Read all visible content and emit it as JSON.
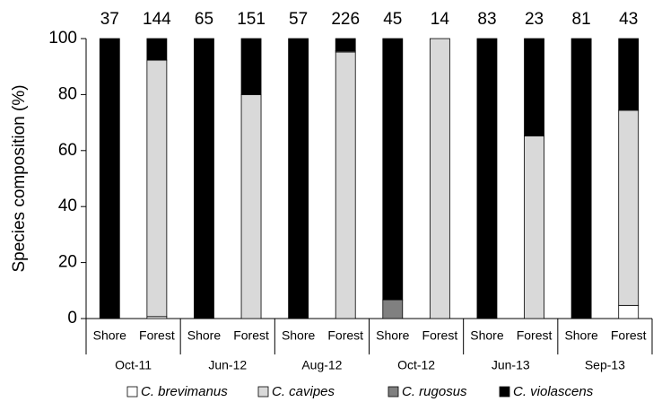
{
  "chart_data": {
    "type": "stacked_bar",
    "ylabel": "Species composition (%)",
    "categories": [
      "Shore",
      "Forest",
      "Shore",
      "Forest",
      "Shore",
      "Forest",
      "Shore",
      "Forest",
      "Shore",
      "Forest",
      "Shore",
      "Forest"
    ],
    "groups": [
      "Oct-11",
      "Jun-12",
      "Aug-12",
      "Oct-12",
      "Jun-13",
      "Sep-13"
    ],
    "sample_sizes": [
      37,
      144,
      65,
      151,
      57,
      226,
      45,
      14,
      83,
      23,
      81,
      43
    ],
    "series": [
      {
        "name": "C. brevimanus",
        "color": "#ffffff",
        "values": [
          0,
          0.7,
          0,
          0,
          0,
          0,
          0,
          0,
          0,
          0,
          0,
          4.7
        ]
      },
      {
        "name": "C. cavipes",
        "color": "#d9d9d9",
        "values": [
          0,
          91.6,
          0,
          80,
          0,
          95.2,
          0,
          100,
          0,
          65.2,
          0,
          69.7
        ]
      },
      {
        "name": "C. rugosus",
        "color": "#808080",
        "values": [
          0,
          0,
          0,
          0,
          0,
          0.4,
          6.7,
          0,
          0,
          0,
          0,
          0
        ]
      },
      {
        "name": "C. violascens",
        "color": "#000000",
        "values": [
          100,
          7.7,
          100,
          20,
          100,
          4.4,
          93.3,
          0,
          100,
          34.8,
          100,
          25.6
        ]
      }
    ],
    "ylim": [
      0,
      100
    ],
    "yticks": [
      0,
      20,
      40,
      60,
      80,
      100
    ],
    "grid": false,
    "legend": "bottom"
  }
}
